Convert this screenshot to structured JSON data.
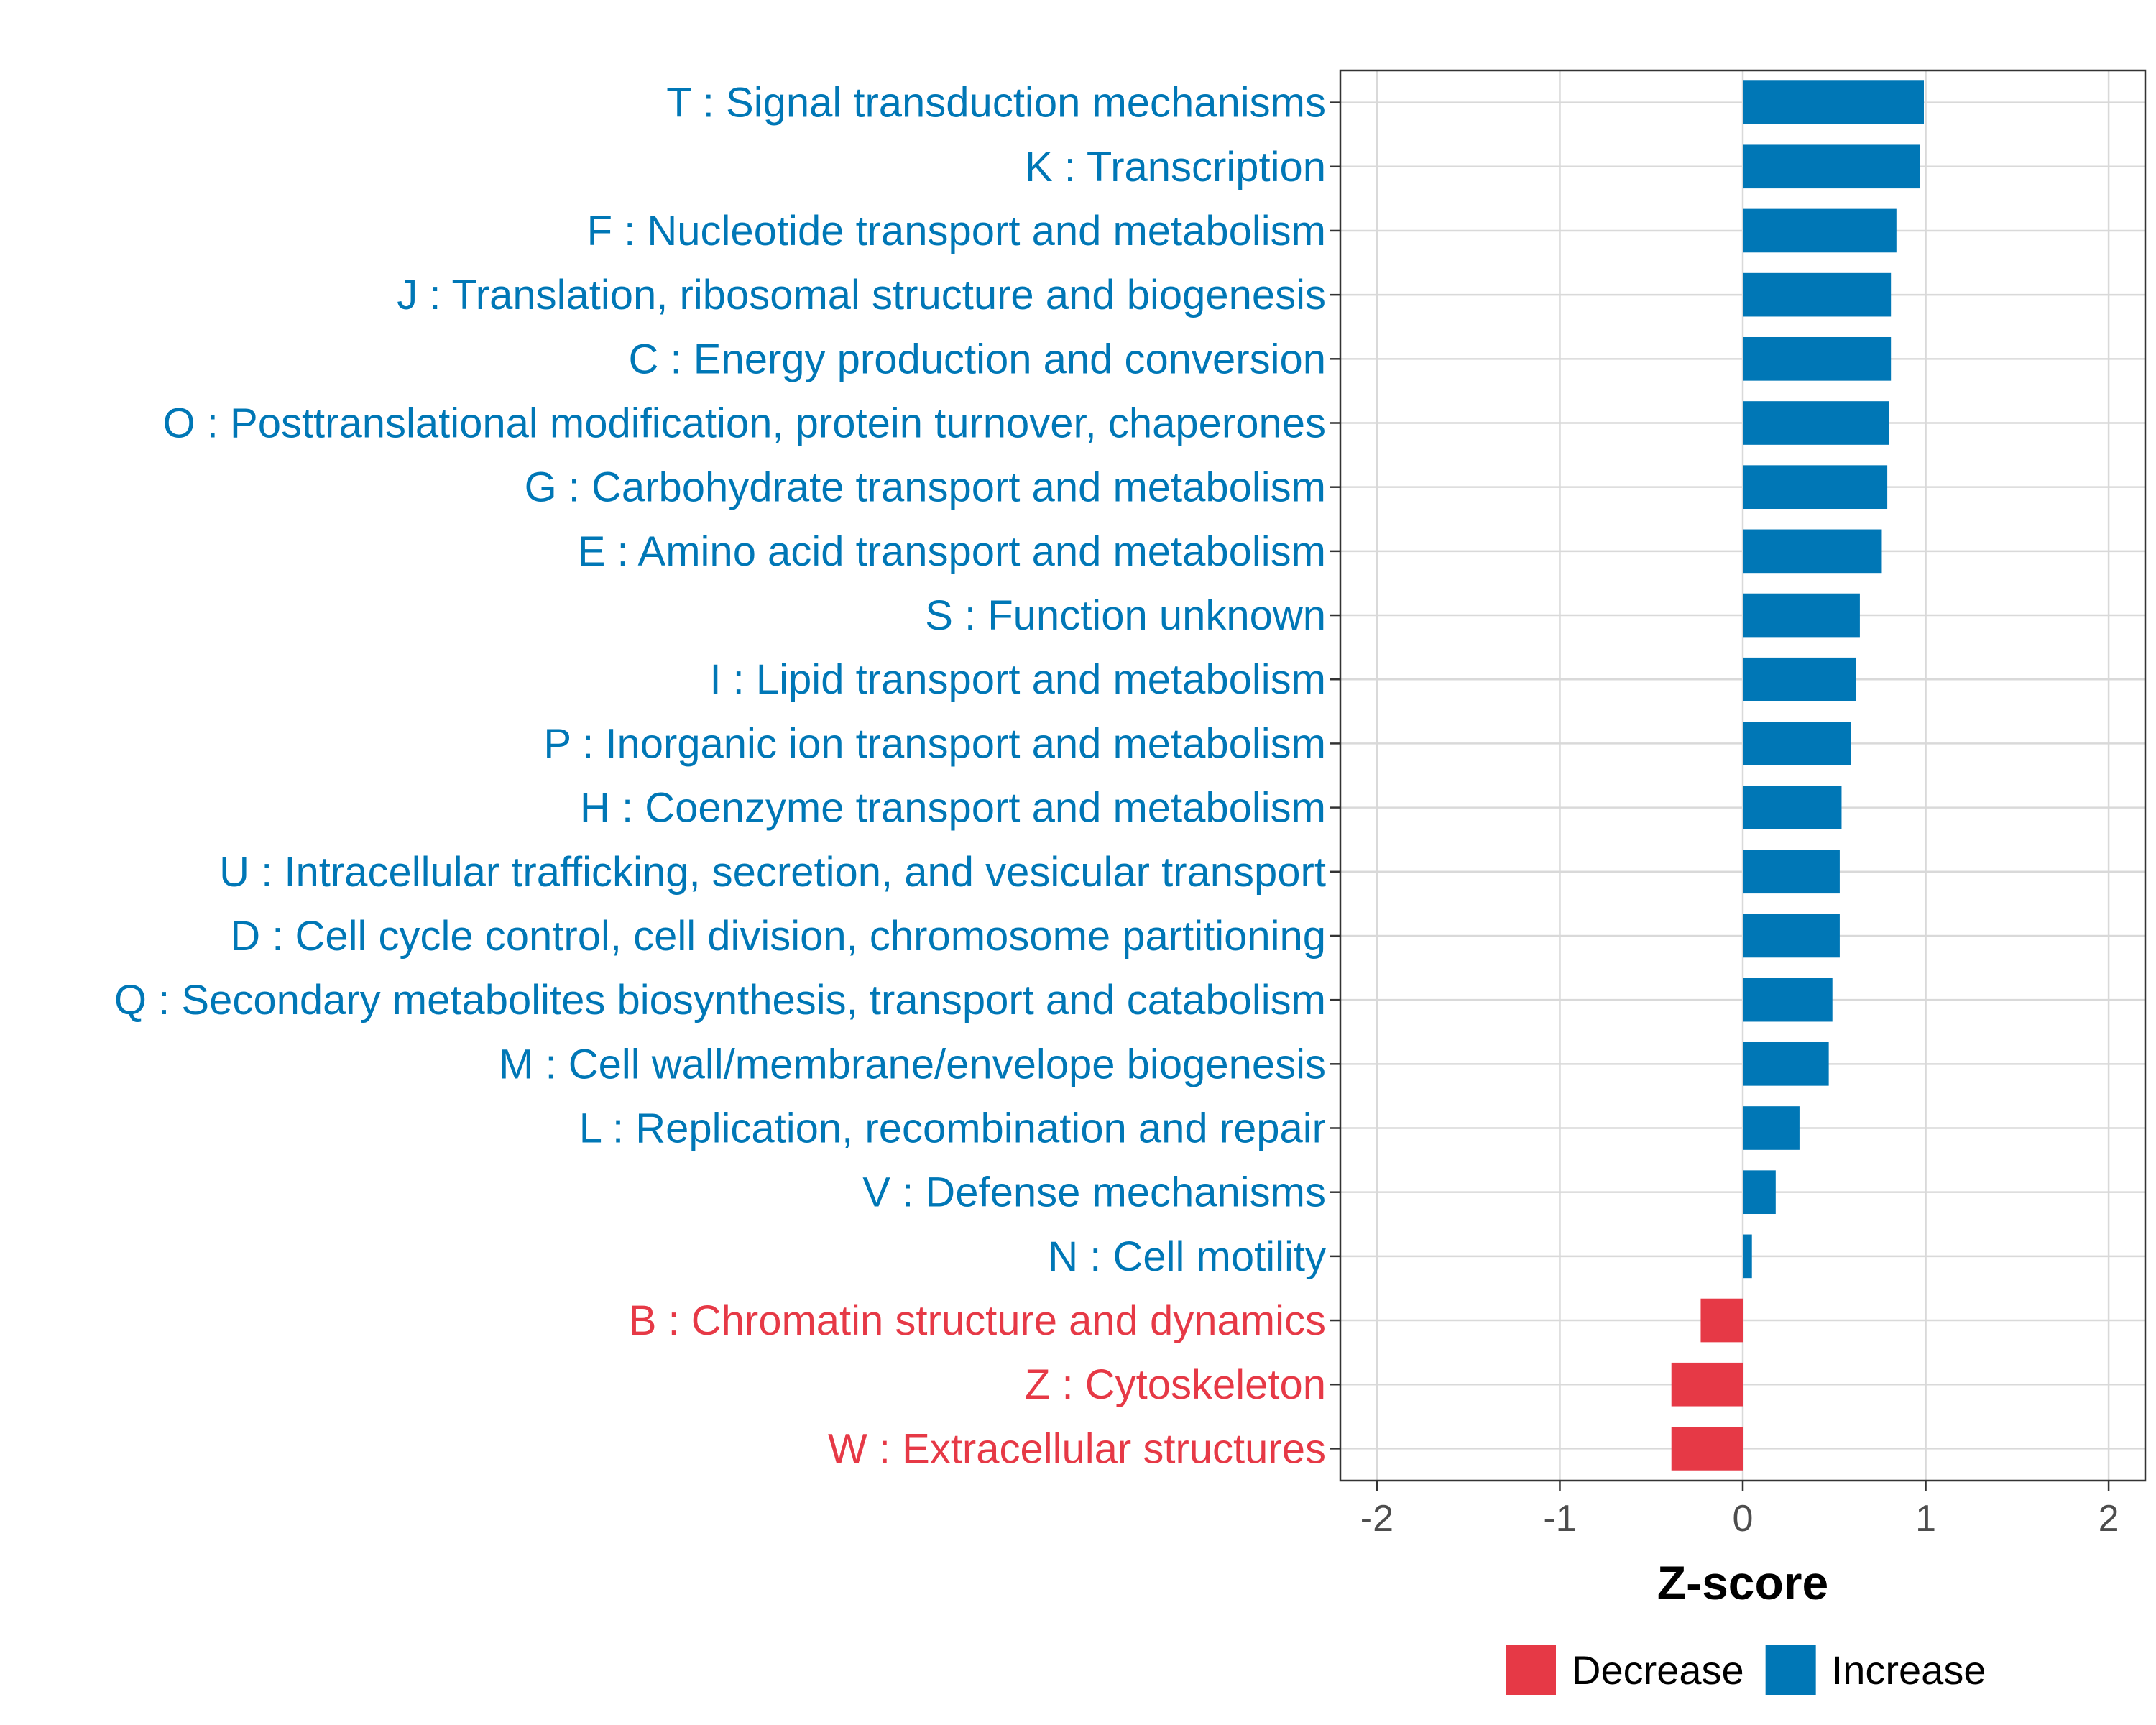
{
  "chart_data": {
    "type": "bar",
    "orientation": "horizontal",
    "xlabel": "Z-score",
    "xlim": [
      -2.2,
      2.2
    ],
    "xticks": [
      -2,
      -1,
      0,
      1,
      2
    ],
    "xtick_labels": [
      "-2",
      "-1",
      "0",
      "1",
      "2"
    ],
    "grid": true,
    "legend_position": "bottom",
    "legend": [
      {
        "name": "Decrease",
        "color": "#E63946"
      },
      {
        "name": "Increase",
        "color": "#0077B6"
      }
    ],
    "categories": [
      "T : Signal transduction mechanisms",
      "K : Transcription",
      "F : Nucleotide transport and metabolism",
      "J : Translation, ribosomal structure and biogenesis",
      "C : Energy production and conversion",
      "O : Posttranslational modification, protein turnover, chaperones",
      "G : Carbohydrate transport and metabolism",
      "E : Amino acid transport and metabolism",
      "S : Function unknown",
      "I : Lipid transport and metabolism",
      "P : Inorganic ion transport and metabolism",
      "H : Coenzyme transport and metabolism",
      "U : Intracellular trafficking, secretion, and vesicular transport",
      "D : Cell cycle control, cell division, chromosome partitioning",
      "Q : Secondary metabolites biosynthesis, transport and catabolism",
      "M : Cell wall/membrane/envelope biogenesis",
      "L : Replication, recombination and repair",
      "V : Defense mechanisms",
      "N : Cell motility",
      "B : Chromatin structure and dynamics",
      "Z : Cytoskeleton",
      "W : Extracellular structures"
    ],
    "values": [
      0.99,
      0.97,
      0.84,
      0.81,
      0.81,
      0.8,
      0.79,
      0.76,
      0.64,
      0.62,
      0.59,
      0.54,
      0.53,
      0.53,
      0.49,
      0.47,
      0.31,
      0.18,
      0.05,
      -0.23,
      -0.39,
      -0.39
    ],
    "groups": [
      "Increase",
      "Increase",
      "Increase",
      "Increase",
      "Increase",
      "Increase",
      "Increase",
      "Increase",
      "Increase",
      "Increase",
      "Increase",
      "Increase",
      "Increase",
      "Increase",
      "Increase",
      "Increase",
      "Increase",
      "Increase",
      "Increase",
      "Decrease",
      "Decrease",
      "Decrease"
    ]
  }
}
